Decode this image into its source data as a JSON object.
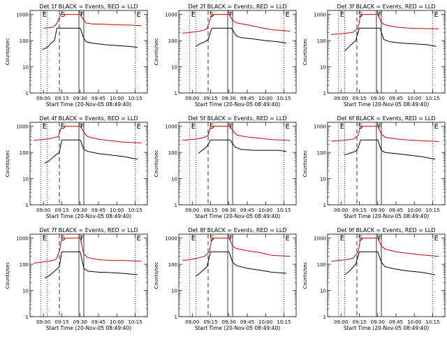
{
  "chart_data": [
    {
      "type": "line",
      "title": "Det 1f BLACK = Events, RED = LLD",
      "xlabel": "Start Time (20-Nov-05 08:49:40)",
      "ylabel": "Counts/sec",
      "ylog": true,
      "ylim": [
        1,
        1000
      ],
      "yticks": [
        "1",
        "10",
        "100",
        "1000"
      ],
      "xticks": [
        "09:00",
        "09:15",
        "09:30",
        "09:45",
        "10:00",
        "10:15"
      ],
      "markers": [
        "E",
        "S",
        "F",
        "E"
      ],
      "series": [
        {
          "color": "#cc0000",
          "x": [
            "09:00",
            "09:07",
            "09:09",
            "09:11",
            "09:14",
            "09:16",
            "09:30",
            "09:33",
            "09:35",
            "09:40",
            "09:50",
            "10:00",
            "10:10",
            "10:20"
          ],
          "values": [
            300,
            320,
            360,
            450,
            1000,
            1000,
            1000,
            600,
            470,
            430,
            420,
            400,
            390,
            370
          ]
        },
        {
          "color": "#000000",
          "x": [
            "08:59",
            "09:02",
            "09:04",
            "09:06",
            "09:09",
            "09:11",
            "09:30",
            "09:33",
            "09:35",
            "09:40",
            "09:50",
            "10:00",
            "10:10",
            "10:17"
          ],
          "values": [
            45,
            52,
            60,
            80,
            100,
            300,
            300,
            120,
            90,
            80,
            70,
            65,
            60,
            55
          ]
        }
      ]
    },
    {
      "type": "line",
      "title": "Det 2f BLACK = Events, RED = LLD",
      "xlabel": "Start Time (20-Nov-05 08:49:40)",
      "ylabel": "Counts/sec",
      "ylog": true,
      "ylim": [
        1,
        1000
      ],
      "yticks": [
        "1",
        "10",
        "100",
        "1000"
      ],
      "xticks": [
        "09:00",
        "09:15",
        "09:30",
        "09:45",
        "10:00",
        "10:15"
      ],
      "markers": [
        "E",
        "S",
        "F",
        "E"
      ],
      "series": [
        {
          "color": "#cc0000",
          "x": [
            "08:52",
            "08:56",
            "09:00",
            "09:04",
            "09:08",
            "09:12",
            "09:16",
            "09:30",
            "09:33",
            "09:36",
            "09:45",
            "09:55",
            "10:05",
            "10:20"
          ],
          "values": [
            190,
            200,
            210,
            220,
            240,
            280,
            1000,
            1000,
            600,
            480,
            400,
            320,
            260,
            230
          ]
        },
        {
          "color": "#000000",
          "x": [
            "09:03",
            "09:06",
            "09:09",
            "09:11",
            "09:13",
            "09:16",
            "09:32",
            "09:36",
            "09:40",
            "09:50",
            "10:00",
            "10:10",
            "10:17"
          ],
          "values": [
            60,
            75,
            85,
            95,
            110,
            300,
            300,
            150,
            130,
            115,
            100,
            90,
            80
          ]
        }
      ]
    },
    {
      "type": "line",
      "title": "Det 3f BLACK = Events, RED = LLD",
      "xlabel": "Start Time (20-Nov-05 08:49:40)",
      "ylabel": "Counts/sec",
      "ylog": true,
      "ylim": [
        1,
        1000
      ],
      "yticks": [
        "1",
        "10",
        "100",
        "1000"
      ],
      "xticks": [
        "09:00",
        "09:15",
        "09:30",
        "09:45",
        "10:00",
        "10:15"
      ],
      "markers": [
        "E",
        "S",
        "F",
        "E"
      ],
      "series": [
        {
          "color": "#cc0000",
          "x": [
            "08:52",
            "08:58",
            "09:04",
            "09:10",
            "09:14",
            "09:16",
            "09:30",
            "09:33",
            "09:36",
            "09:45",
            "09:55",
            "10:05",
            "10:20"
          ],
          "values": [
            170,
            180,
            190,
            210,
            300,
            1000,
            1000,
            500,
            400,
            330,
            300,
            290,
            280
          ]
        },
        {
          "color": "#000000",
          "x": [
            "09:03",
            "09:06",
            "09:09",
            "09:12",
            "09:15",
            "09:32",
            "09:35",
            "09:40",
            "09:50",
            "10:00",
            "10:10",
            "10:18"
          ],
          "values": [
            40,
            55,
            75,
            100,
            300,
            300,
            110,
            90,
            80,
            75,
            70,
            60
          ]
        }
      ]
    },
    {
      "type": "line",
      "title": "Det 4f BLACK = Events, RED = LLD",
      "xlabel": "Start Time (20-Nov-05 08:49:40)",
      "ylabel": "Counts/sec",
      "ylog": true,
      "ylim": [
        1,
        1000
      ],
      "yticks": [
        "1",
        "10",
        "100",
        "1000"
      ],
      "xticks": [
        "09:00",
        "09:15",
        "09:30",
        "09:45",
        "10:00",
        "10:15"
      ],
      "markers": [
        "E",
        "S",
        "F",
        "E"
      ],
      "series": [
        {
          "color": "#cc0000",
          "x": [
            "08:52",
            "08:58",
            "09:04",
            "09:08",
            "09:12",
            "09:15",
            "09:30",
            "09:33",
            "09:36",
            "09:45",
            "09:55",
            "10:05",
            "10:20"
          ],
          "values": [
            290,
            310,
            330,
            360,
            400,
            1000,
            1000,
            600,
            400,
            320,
            280,
            250,
            230
          ]
        },
        {
          "color": "#000000",
          "x": [
            "09:01",
            "09:04",
            "09:07",
            "09:10",
            "09:13",
            "09:15",
            "09:30",
            "09:33",
            "09:36",
            "09:45",
            "09:55",
            "10:05",
            "10:17"
          ],
          "values": [
            40,
            45,
            60,
            80,
            100,
            300,
            300,
            130,
            110,
            90,
            80,
            70,
            55
          ]
        }
      ]
    },
    {
      "type": "line",
      "title": "Det 5f BLACK = Events, RED = LLD",
      "xlabel": "Start Time (20-Nov-05 08:49:40)",
      "ylabel": "Counts/sec",
      "ylog": true,
      "ylim": [
        1,
        1000
      ],
      "yticks": [
        "1",
        "10",
        "100",
        "1000"
      ],
      "xticks": [
        "09:00",
        "09:15",
        "09:30",
        "09:45",
        "10:00",
        "10:15"
      ],
      "markers": [
        "E",
        "S",
        "F",
        "E"
      ],
      "series": [
        {
          "color": "#cc0000",
          "x": [
            "08:52",
            "08:58",
            "09:04",
            "09:10",
            "09:13",
            "09:15",
            "09:31",
            "09:34",
            "09:37",
            "09:45",
            "09:55",
            "10:05",
            "10:20"
          ],
          "values": [
            290,
            310,
            330,
            380,
            450,
            1000,
            1000,
            600,
            450,
            390,
            350,
            310,
            290
          ]
        },
        {
          "color": "#000000",
          "x": [
            "09:05",
            "09:07",
            "09:09",
            "09:11",
            "09:13",
            "09:15",
            "09:31",
            "09:35",
            "09:40",
            "09:50",
            "10:00",
            "10:10",
            "10:17"
          ],
          "values": [
            90,
            110,
            130,
            150,
            200,
            300,
            300,
            160,
            130,
            120,
            120,
            120,
            110
          ]
        }
      ]
    },
    {
      "type": "line",
      "title": "Det 6f BLACK = Events, RED = LLD",
      "xlabel": "Start Time (20-Nov-05 08:49:40)",
      "ylabel": "Counts/sec",
      "ylog": true,
      "ylim": [
        1,
        1000
      ],
      "yticks": [
        "1",
        "10",
        "100",
        "1000"
      ],
      "xticks": [
        "09:00",
        "09:15",
        "09:30",
        "09:45",
        "10:00",
        "10:15"
      ],
      "markers": [
        "E",
        "S",
        "F",
        "E"
      ],
      "series": [
        {
          "color": "#cc0000",
          "x": [
            "08:52",
            "08:58",
            "09:04",
            "09:10",
            "09:14",
            "09:16",
            "09:30",
            "09:33",
            "09:36",
            "09:45",
            "09:55",
            "10:05",
            "10:20"
          ],
          "values": [
            270,
            280,
            300,
            320,
            450,
            1000,
            1000,
            500,
            380,
            330,
            300,
            280,
            260
          ]
        },
        {
          "color": "#000000",
          "x": [
            "09:03",
            "09:06",
            "09:09",
            "09:12",
            "09:14",
            "09:16",
            "09:30",
            "09:33",
            "09:36",
            "09:45",
            "09:55",
            "10:05",
            "10:17"
          ],
          "values": [
            80,
            90,
            100,
            110,
            150,
            300,
            300,
            120,
            100,
            90,
            80,
            70,
            55
          ]
        }
      ]
    },
    {
      "type": "line",
      "title": "Det 7f BLACK = Events, RED = LLD",
      "xlabel": "Start Time (20-Nov-05 08:49:40)",
      "ylabel": "Counts/sec",
      "ylog": true,
      "ylim": [
        1,
        1000
      ],
      "yticks": [
        "1",
        "10",
        "100",
        "1000"
      ],
      "xticks": [
        "09:00",
        "09:15",
        "09:30",
        "09:45",
        "10:00",
        "10:15"
      ],
      "markers": [
        "E",
        "S",
        "F",
        "E"
      ],
      "series": [
        {
          "color": "#cc0000",
          "x": [
            "08:52",
            "08:58",
            "09:04",
            "09:10",
            "09:13",
            "09:15",
            "09:30",
            "09:33",
            "09:36",
            "09:45",
            "09:55",
            "10:05",
            "10:20"
          ],
          "values": [
            110,
            120,
            130,
            150,
            300,
            1000,
            1000,
            250,
            180,
            150,
            140,
            140,
            130
          ]
        },
        {
          "color": "#000000",
          "x": [
            "09:01",
            "09:04",
            "09:07",
            "09:10",
            "09:13",
            "09:15",
            "09:30",
            "09:33",
            "09:36",
            "09:45",
            "09:55",
            "10:05",
            "10:17"
          ],
          "values": [
            30,
            35,
            45,
            60,
            80,
            300,
            300,
            70,
            55,
            50,
            48,
            45,
            40
          ]
        }
      ]
    },
    {
      "type": "line",
      "title": "Det 8f BLACK = Events, RED = LLD",
      "xlabel": "Start Time (20-Nov-05 08:49:40)",
      "ylabel": "Counts/sec",
      "ylog": true,
      "ylim": [
        1,
        1000
      ],
      "yticks": [
        "1",
        "10",
        "100",
        "1000"
      ],
      "xticks": [
        "09:00",
        "09:15",
        "09:30",
        "09:45",
        "10:00",
        "10:15"
      ],
      "markers": [
        "E",
        "S",
        "F",
        "E"
      ],
      "series": [
        {
          "color": "#cc0000",
          "x": [
            "08:52",
            "08:58",
            "09:04",
            "09:10",
            "09:14",
            "09:16",
            "09:30",
            "09:33",
            "09:36",
            "09:45",
            "09:55",
            "10:05",
            "10:20"
          ],
          "values": [
            140,
            150,
            170,
            200,
            300,
            1000,
            1000,
            500,
            400,
            330,
            280,
            220,
            200
          ]
        },
        {
          "color": "#000000",
          "x": [
            "09:03",
            "09:06",
            "09:09",
            "09:12",
            "09:15",
            "09:30",
            "09:33",
            "09:36",
            "09:45",
            "09:55",
            "10:05",
            "10:17"
          ],
          "values": [
            35,
            45,
            60,
            80,
            300,
            300,
            120,
            90,
            70,
            60,
            50,
            45
          ]
        }
      ]
    },
    {
      "type": "line",
      "title": "Det 9f BLACK = Events, RED = LLD",
      "xlabel": "Start Time (20-Nov-05 08:49:40)",
      "ylabel": "Counts/sec",
      "ylog": true,
      "ylim": [
        1,
        1000
      ],
      "yticks": [
        "1",
        "10",
        "100",
        "1000"
      ],
      "xticks": [
        "09:00",
        "09:15",
        "09:30",
        "09:45",
        "10:00",
        "10:15"
      ],
      "markers": [
        "E",
        "S",
        "F",
        "E"
      ],
      "series": [
        {
          "color": "#cc0000",
          "x": [
            "08:52",
            "08:58",
            "09:04",
            "09:10",
            "09:14",
            "09:16",
            "09:30",
            "09:33",
            "09:36",
            "09:45",
            "09:55",
            "10:05",
            "10:20"
          ],
          "values": [
            130,
            140,
            150,
            170,
            300,
            1000,
            1000,
            500,
            380,
            300,
            260,
            230,
            200
          ]
        },
        {
          "color": "#000000",
          "x": [
            "09:03",
            "09:06",
            "09:09",
            "09:12",
            "09:15",
            "09:30",
            "09:33",
            "09:36",
            "09:45",
            "09:55",
            "10:05",
            "10:17"
          ],
          "values": [
            40,
            50,
            70,
            100,
            300,
            300,
            120,
            80,
            65,
            55,
            50,
            40
          ]
        }
      ]
    }
  ]
}
